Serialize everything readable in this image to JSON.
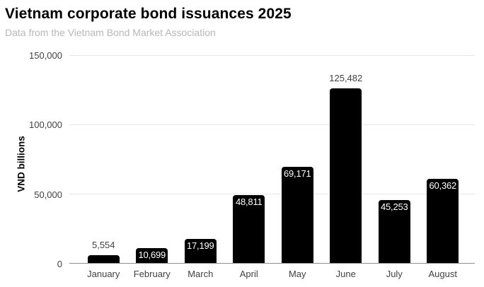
{
  "chart_data": {
    "type": "bar",
    "title": "Vietnam corporate bond issuances 2025",
    "subtitle": "Data from the Vietnam Bond Market Association",
    "ylabel": "VND billions",
    "xlabel": "",
    "categories": [
      "January",
      "February",
      "March",
      "April",
      "May",
      "June",
      "July",
      "August"
    ],
    "values": [
      5554,
      10699,
      17199,
      48811,
      69171,
      125482,
      45253,
      60362
    ],
    "value_labels": [
      "5,554",
      "10,699",
      "17,199",
      "48,811",
      "69,171",
      "125,482",
      "45,253",
      "60,362"
    ],
    "value_label_placement": [
      "above",
      "inside",
      "inside",
      "inside",
      "inside",
      "above",
      "inside",
      "inside"
    ],
    "ylim": [
      0,
      150000
    ],
    "yticks": [
      {
        "value": 0,
        "label": "0"
      },
      {
        "value": 50000,
        "label": "50,000"
      },
      {
        "value": 100000,
        "label": "100,000"
      },
      {
        "value": 150000,
        "label": "150,000"
      }
    ],
    "grid": true,
    "legend_position": "none",
    "colors": {
      "bar": "#000000",
      "inside_label": "#ffffff",
      "outside_label": "#424242",
      "gridline": "#e6e6e6",
      "axis_line": "#8f8f8f",
      "tick_label": "#424242",
      "title": "#000000",
      "subtitle": "#b7b7b7",
      "background": "#ffffff"
    }
  }
}
